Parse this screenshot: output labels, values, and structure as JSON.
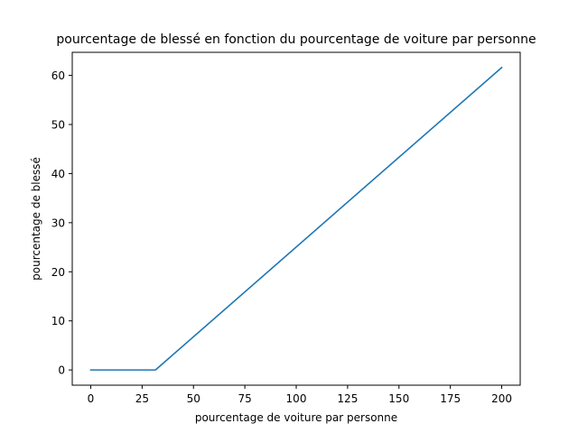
{
  "chart_data": {
    "type": "line",
    "title": "pourcentage de blessé en fonction du pourcentage de voiture par personne",
    "xlabel": "pourcentage de voiture par personne",
    "ylabel": "pourcentage de blessé",
    "xlim": [
      -9,
      209
    ],
    "ylim": [
      -3.1,
      64.7
    ],
    "xticks": [
      0,
      25,
      50,
      75,
      100,
      125,
      150,
      175,
      200
    ],
    "yticks": [
      0,
      10,
      20,
      30,
      40,
      50,
      60
    ],
    "xtick_labels": [
      "0",
      "25",
      "50",
      "75",
      "100",
      "125",
      "150",
      "175",
      "200"
    ],
    "ytick_labels": [
      "0",
      "10",
      "20",
      "30",
      "40",
      "50",
      "60"
    ],
    "grid": false,
    "legend": "none",
    "series": [
      {
        "color": "#1f77b4",
        "x": [
          0,
          31.5,
          200
        ],
        "y": [
          0,
          0,
          61.6
        ]
      }
    ]
  }
}
